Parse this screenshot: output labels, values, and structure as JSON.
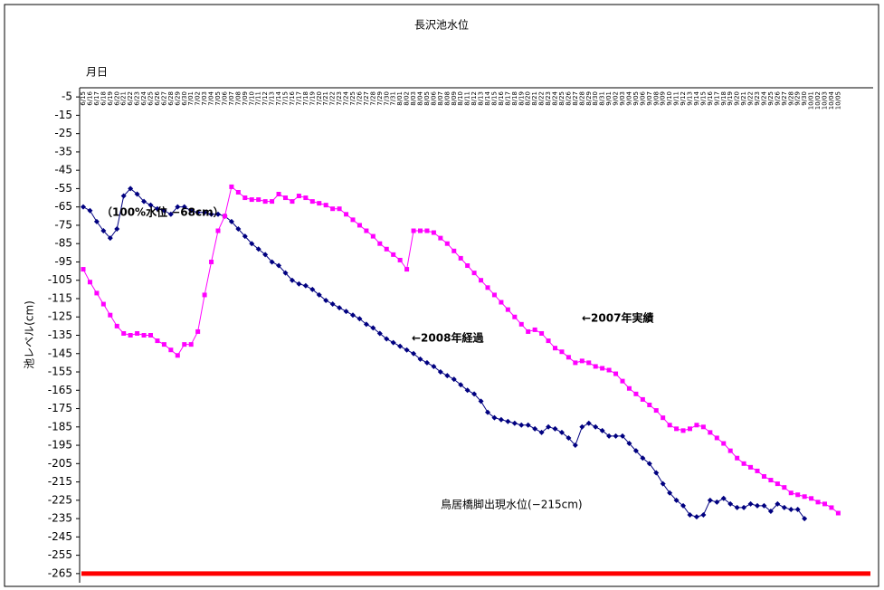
{
  "chart_data": {
    "type": "line",
    "title": "長沢池水位",
    "x_label": "月日",
    "y_label": "池レベル(cm)",
    "categories": [
      "6/15",
      "6/16",
      "6/17",
      "6/18",
      "6/19",
      "6/20",
      "6/21",
      "6/22",
      "6/23",
      "6/24",
      "6/25",
      "6/26",
      "6/27",
      "6/28",
      "6/29",
      "6/30",
      "7/01",
      "7/02",
      "7/03",
      "7/04",
      "7/05",
      "7/06",
      "7/07",
      "7/08",
      "7/09",
      "7/10",
      "7/11",
      "7/12",
      "7/13",
      "7/14",
      "7/15",
      "7/16",
      "7/17",
      "7/18",
      "7/19",
      "7/20",
      "7/21",
      "7/22",
      "7/23",
      "7/24",
      "7/25",
      "7/26",
      "7/27",
      "7/28",
      "7/29",
      "7/30",
      "7/31",
      "8/01",
      "8/02",
      "8/03",
      "8/04",
      "8/05",
      "8/06",
      "8/07",
      "8/08",
      "8/09",
      "8/10",
      "8/11",
      "8/12",
      "8/13",
      "8/14",
      "8/15",
      "8/16",
      "8/17",
      "8/18",
      "8/19",
      "8/20",
      "8/21",
      "8/22",
      "8/23",
      "8/24",
      "8/25",
      "8/26",
      "8/27",
      "8/28",
      "8/29",
      "8/30",
      "8/31",
      "9/01",
      "9/02",
      "9/03",
      "9/04",
      "9/05",
      "9/06",
      "9/07",
      "9/08",
      "9/09",
      "9/10",
      "9/11",
      "9/12",
      "9/13",
      "9/14",
      "9/15",
      "9/16",
      "9/17",
      "9/18",
      "9/19",
      "9/20",
      "9/21",
      "9/22",
      "9/23",
      "9/24",
      "9/25",
      "9/26",
      "9/27",
      "9/28",
      "9/29",
      "9/30",
      "10/01",
      "10/02",
      "10/03",
      "10/04",
      "10/05"
    ],
    "series": [
      {
        "color": "#000080",
        "marker": "diamond",
        "values": [
          -65,
          -67,
          -73,
          -78,
          -82,
          -77,
          -59,
          -55,
          -58,
          -62,
          -64,
          -66,
          -67,
          -69,
          -65,
          -65,
          -67,
          -68,
          -68,
          -69,
          -69,
          -70,
          -73,
          -77,
          -81,
          -85,
          -88,
          -91,
          -95,
          -97,
          -101,
          -105,
          -107,
          -108,
          -110,
          -113,
          -116,
          -118,
          -120,
          -122,
          -124,
          -126,
          -129,
          -131,
          -134,
          -137,
          -139,
          -141,
          -143,
          -145,
          -148,
          -150,
          -152,
          -155,
          -157,
          -159,
          -162,
          -165,
          -167,
          -171,
          -177,
          -180,
          -181,
          -182,
          -183,
          -184,
          -184,
          -186,
          -188,
          -185,
          -186,
          -188,
          -191,
          -195,
          -185,
          -183,
          -185,
          -187,
          -190,
          -190,
          -190,
          -194,
          -198,
          -202,
          -205,
          -210,
          -216,
          -221,
          -225,
          -228,
          -233,
          -234,
          -233,
          -225,
          -226,
          -224,
          -227,
          -229,
          -229,
          -227,
          -228,
          -228,
          -231,
          -227,
          -229,
          -230,
          -230,
          -235,
          null,
          null,
          null,
          null,
          null
        ]
      },
      {
        "color": "#ff00ff",
        "marker": "square",
        "values": [
          -99,
          -106,
          -112,
          -118,
          -124,
          -130,
          -134,
          -135,
          -134,
          -135,
          -135,
          -138,
          -140,
          -143,
          -146,
          -140,
          -140,
          -133,
          -113,
          -95,
          -78,
          -70,
          -54,
          -57,
          -60,
          -61,
          -61,
          -62,
          -62,
          -58,
          -60,
          -62,
          -59,
          -60,
          -62,
          -63,
          -64,
          -66,
          -66,
          -69,
          -72,
          -75,
          -78,
          -81,
          -85,
          -88,
          -91,
          -94,
          -99,
          -78,
          -78,
          -78,
          -79,
          -82,
          -85,
          -89,
          -93,
          -97,
          -101,
          -105,
          -109,
          -113,
          -117,
          -121,
          -125,
          -129,
          -133,
          -132,
          -134,
          -138,
          -142,
          -144,
          -147,
          -150,
          -149,
          -150,
          -152,
          -153,
          -154,
          -156,
          -160,
          -164,
          -167,
          -170,
          -173,
          -176,
          -180,
          -184,
          -186,
          -187,
          -186,
          -184,
          -185,
          -188,
          -191,
          -194,
          -198,
          -202,
          -205,
          -207,
          -209,
          -212,
          -214,
          -216,
          -218,
          -221,
          -222,
          -223,
          -224,
          -226,
          -227,
          -229,
          -232
        ]
      }
    ],
    "reference_line": {
      "value": -265,
      "color": "#ff0000"
    },
    "annotations": [
      "（100%水位 −68cm）",
      "←2008年経過",
      "←2007年実績",
      "鳥居橋脚出現水位(−215cm)"
    ],
    "ylim": [
      -270,
      0
    ],
    "yticks": [
      -5,
      -15,
      -25,
      -35,
      -45,
      -55,
      -65,
      -75,
      -85,
      -95,
      -105,
      -115,
      -125,
      -135,
      -145,
      -155,
      -165,
      -175,
      -185,
      -195,
      -205,
      -215,
      -225,
      -235,
      -245,
      -255,
      -265
    ],
    "grid": false
  }
}
